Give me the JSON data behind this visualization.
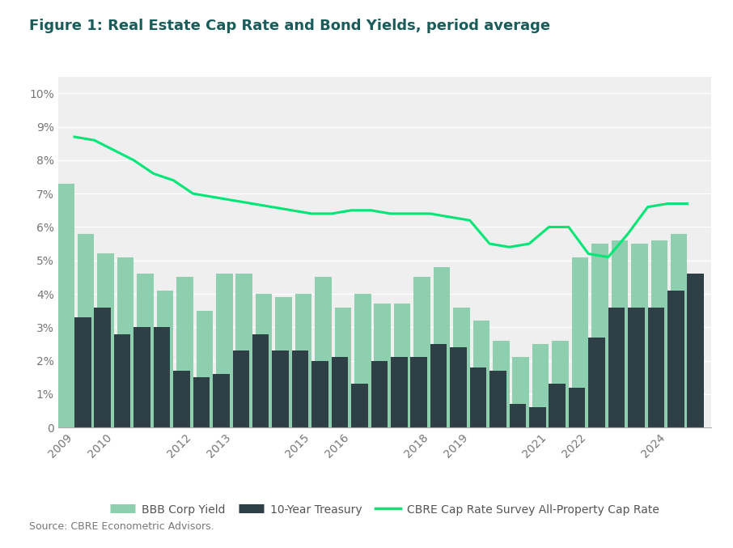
{
  "title": "Figure 1: Real Estate Cap Rate and Bond Yields, period average",
  "source": "Source: CBRE Econometric Advisors.",
  "fig_background_color": "#ffffff",
  "plot_background_color": "#efefef",
  "title_color": "#1a5c5a",
  "ylim": [
    0,
    0.105
  ],
  "yticks": [
    0,
    0.01,
    0.02,
    0.03,
    0.04,
    0.05,
    0.06,
    0.07,
    0.08,
    0.09,
    0.1
  ],
  "ytick_labels": [
    "0",
    "1%",
    "2%",
    "3%",
    "4%",
    "5%",
    "6%",
    "7%",
    "8%",
    "9%",
    "10%"
  ],
  "years": [
    2009.0,
    2009.5,
    2010.0,
    2010.5,
    2011.0,
    2011.5,
    2012.0,
    2012.5,
    2013.0,
    2013.5,
    2014.0,
    2014.5,
    2015.0,
    2015.5,
    2016.0,
    2016.5,
    2017.0,
    2017.5,
    2018.0,
    2018.5,
    2019.0,
    2019.5,
    2020.0,
    2020.5,
    2021.0,
    2021.5,
    2022.0,
    2022.5,
    2023.0,
    2023.5,
    2024.0,
    2024.5
  ],
  "bbb_corp_yield": [
    0.073,
    0.058,
    0.052,
    0.051,
    0.046,
    0.041,
    0.045,
    0.035,
    0.046,
    0.046,
    0.04,
    0.039,
    0.04,
    0.045,
    0.036,
    0.04,
    0.037,
    0.037,
    0.045,
    0.048,
    0.036,
    0.032,
    0.026,
    0.021,
    0.025,
    0.026,
    0.051,
    0.055,
    0.056,
    0.055,
    0.056,
    0.058
  ],
  "treasury_10yr": [
    0.033,
    0.036,
    0.028,
    0.03,
    0.03,
    0.017,
    0.015,
    0.016,
    0.023,
    0.028,
    0.023,
    0.023,
    0.02,
    0.021,
    0.013,
    0.02,
    0.021,
    0.021,
    0.025,
    0.024,
    0.018,
    0.017,
    0.007,
    0.006,
    0.013,
    0.012,
    0.027,
    0.036,
    0.036,
    0.036,
    0.041,
    0.046
  ],
  "cap_rate": [
    0.087,
    0.086,
    0.083,
    0.08,
    0.076,
    0.074,
    0.07,
    0.069,
    0.068,
    0.067,
    0.066,
    0.065,
    0.064,
    0.064,
    0.065,
    0.065,
    0.064,
    0.064,
    0.064,
    0.063,
    0.062,
    0.055,
    0.054,
    0.055,
    0.06,
    0.06,
    0.052,
    0.051,
    0.058,
    0.066,
    0.067,
    0.067
  ],
  "bar_width": 0.42,
  "bbb_color": "#8ecfb0",
  "treasury_color": "#2e3f45",
  "cap_rate_color": "#00e676",
  "divider_color": "#1a4a48",
  "tick_color": "#777777",
  "grid_color": "#ffffff",
  "xtick_labels": [
    "2009",
    "2010",
    "2012",
    "2013",
    "2015",
    "2016",
    "2018",
    "2019",
    "2021",
    "2022",
    "2024"
  ],
  "xtick_positions": [
    2009.0,
    2010.0,
    2012.0,
    2013.0,
    2015.0,
    2016.0,
    2018.0,
    2019.0,
    2021.0,
    2022.0,
    2024.0
  ],
  "xlim": [
    2008.6,
    2025.1
  ]
}
